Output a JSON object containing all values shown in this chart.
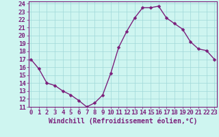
{
  "x": [
    0,
    1,
    2,
    3,
    4,
    5,
    6,
    7,
    8,
    9,
    10,
    11,
    12,
    13,
    14,
    15,
    16,
    17,
    18,
    19,
    20,
    21,
    22,
    23
  ],
  "y": [
    17,
    15.8,
    14,
    13.7,
    13,
    12.5,
    11.8,
    11,
    11.5,
    12.5,
    15.2,
    18.5,
    20.5,
    22.2,
    23.5,
    23.5,
    23.7,
    22.2,
    21.5,
    20.8,
    19.2,
    18.3,
    18.1,
    17
  ],
  "line_color": "#7B1F7B",
  "marker_color": "#7B1F7B",
  "bg_color": "#cef5f0",
  "grid_color": "#a0d8d8",
  "xlabel": "Windchill (Refroidissement éolien,°C)",
  "ylim": [
    11,
    24
  ],
  "xlim": [
    -0.3,
    23.3
  ],
  "yticks": [
    11,
    12,
    13,
    14,
    15,
    16,
    17,
    18,
    19,
    20,
    21,
    22,
    23,
    24
  ],
  "xticks": [
    0,
    1,
    2,
    3,
    4,
    5,
    6,
    7,
    8,
    9,
    10,
    11,
    12,
    13,
    14,
    15,
    16,
    17,
    18,
    19,
    20,
    21,
    22,
    23
  ],
  "label_color": "#7B1F7B",
  "tick_color": "#7B1F7B",
  "tick_fontsize": 6.5,
  "xlabel_fontsize": 7,
  "marker_size": 2.5,
  "line_width": 1.0
}
